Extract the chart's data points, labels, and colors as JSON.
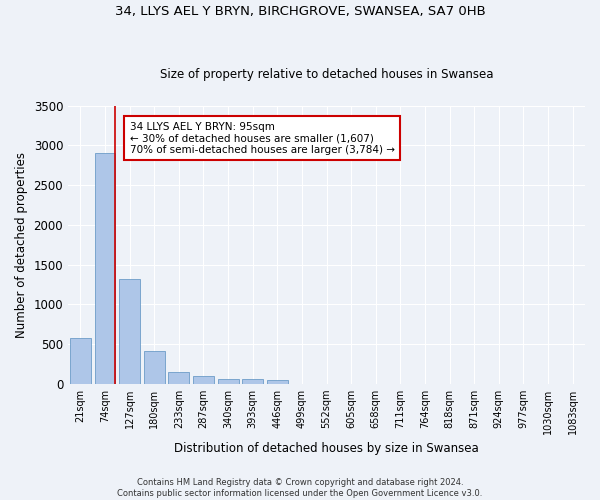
{
  "title1": "34, LLYS AEL Y BRYN, BIRCHGROVE, SWANSEA, SA7 0HB",
  "title2": "Size of property relative to detached houses in Swansea",
  "xlabel": "Distribution of detached houses by size in Swansea",
  "ylabel": "Number of detached properties",
  "footnote1": "Contains HM Land Registry data © Crown copyright and database right 2024.",
  "footnote2": "Contains public sector information licensed under the Open Government Licence v3.0.",
  "bin_labels": [
    "21sqm",
    "74sqm",
    "127sqm",
    "180sqm",
    "233sqm",
    "287sqm",
    "340sqm",
    "393sqm",
    "446sqm",
    "499sqm",
    "552sqm",
    "605sqm",
    "658sqm",
    "711sqm",
    "764sqm",
    "818sqm",
    "871sqm",
    "924sqm",
    "977sqm",
    "1030sqm",
    "1083sqm"
  ],
  "bar_values": [
    570,
    2900,
    1320,
    410,
    150,
    90,
    60,
    55,
    45,
    0,
    0,
    0,
    0,
    0,
    0,
    0,
    0,
    0,
    0,
    0,
    0
  ],
  "bar_color": "#aec6e8",
  "bar_edge_color": "#5a8fc0",
  "vline_color": "#cc0000",
  "annotation_text": "34 LLYS AEL Y BRYN: 95sqm\n← 30% of detached houses are smaller (1,607)\n70% of semi-detached houses are larger (3,784) →",
  "ylim": [
    0,
    3500
  ],
  "yticks": [
    0,
    500,
    1000,
    1500,
    2000,
    2500,
    3000,
    3500
  ],
  "background_color": "#eef2f8",
  "grid_color": "#ffffff",
  "annotation_box_color": "#ffffff",
  "annotation_box_edge": "#cc0000"
}
